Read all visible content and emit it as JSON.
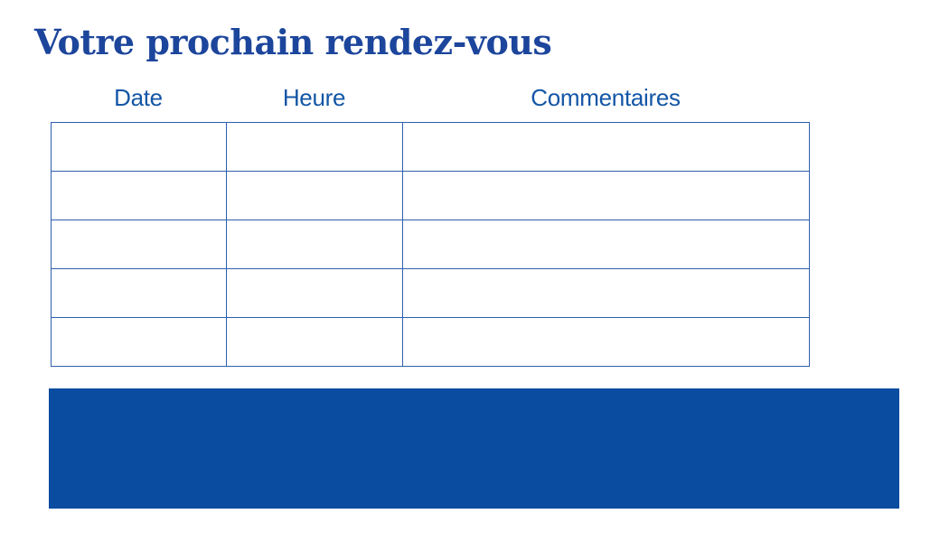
{
  "page": {
    "title": "Votre prochain rendez-vous"
  },
  "table": {
    "headers": [
      "Date",
      "Heure",
      "Commentaires"
    ],
    "rows": [
      [
        "",
        "",
        ""
      ],
      [
        "",
        "",
        ""
      ],
      [
        "",
        "",
        ""
      ],
      [
        "",
        "",
        ""
      ],
      [
        "",
        "",
        ""
      ]
    ]
  },
  "footer_band": {
    "label": ""
  },
  "colors": {
    "title_text": "#1c459c",
    "header_text": "#1356a6",
    "table_border": "#2f5fad",
    "footer_band": "#0a4ca0",
    "background": "#ffffff"
  }
}
